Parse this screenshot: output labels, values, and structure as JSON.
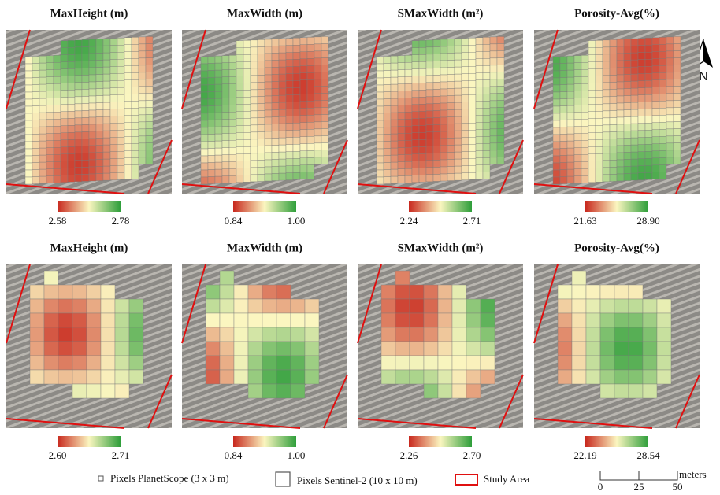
{
  "panels": [
    {
      "title": "MaxHeight (m)",
      "min": "2.58",
      "max": "2.78"
    },
    {
      "title": "MaxWidth (m)",
      "min": "0.84",
      "max": "1.00"
    },
    {
      "title": "SMaxWidth (m²)",
      "min": "2.24",
      "max": "2.71"
    },
    {
      "title": "Porosity-Avg(%)",
      "min": "21.63",
      "max": "28.90"
    },
    {
      "title": "MaxHeight (m)",
      "min": "2.60",
      "max": "2.71"
    },
    {
      "title": "MaxWidth (m)",
      "min": "0.84",
      "max": "1.00"
    },
    {
      "title": "SMaxWidth (m²)",
      "min": "2.26",
      "max": "2.70"
    },
    {
      "title": "Porosity-Avg(%)",
      "min": "22.19",
      "max": "28.54"
    }
  ],
  "north": "N",
  "legend": {
    "planetscope": "Pixels PlanetScope (3 x 3 m)",
    "sentinel": "Pixels Sentinel-2 (10 x 10 m)",
    "study_area": "Study Area"
  },
  "scale_bar": {
    "unit": "meters",
    "ticks": [
      "0",
      "25",
      "50"
    ]
  }
}
